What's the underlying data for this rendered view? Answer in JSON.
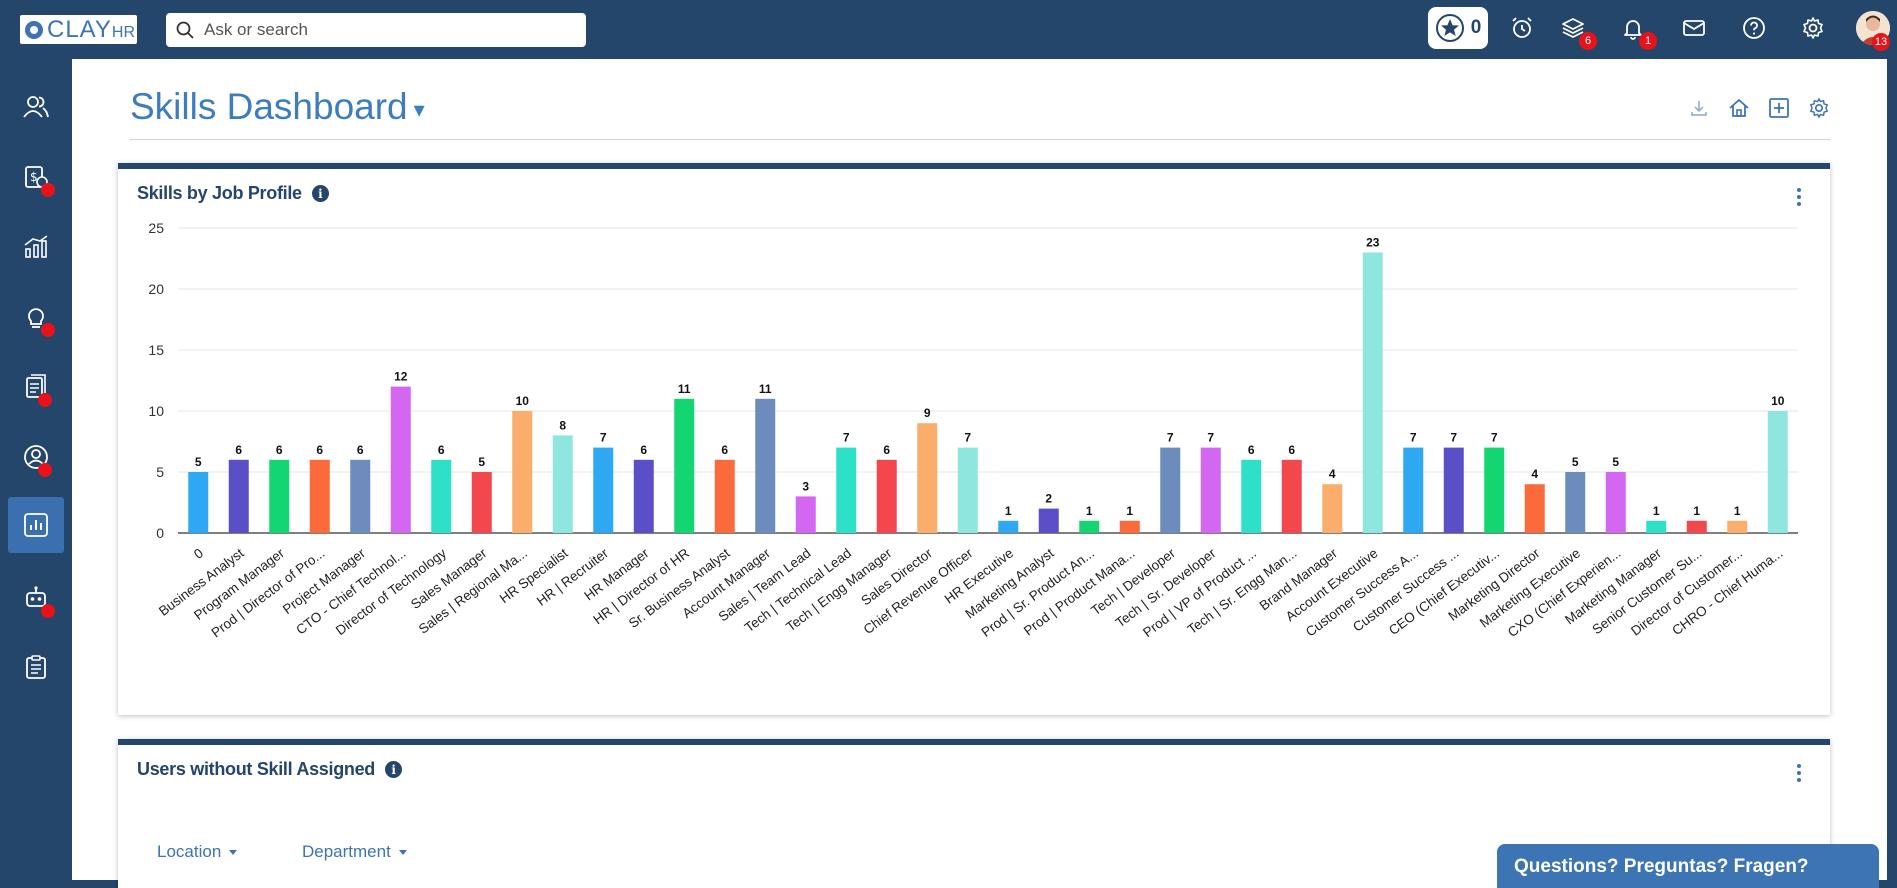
{
  "app": {
    "logo_text": "CLAY",
    "logo_suffix": "HR"
  },
  "search": {
    "placeholder": "Ask or search"
  },
  "topbar": {
    "star_count": "0",
    "layers_badge": "6",
    "notifications_badge": "1",
    "avatar_badge": "13"
  },
  "sidebar": {
    "items": [
      {
        "name": "people-icon",
        "dot": false
      },
      {
        "name": "payroll-icon",
        "dot": true
      },
      {
        "name": "analytics-icon",
        "dot": false
      },
      {
        "name": "goals-icon",
        "dot": true
      },
      {
        "name": "documents-icon",
        "dot": true
      },
      {
        "name": "profile-icon",
        "dot": true
      },
      {
        "name": "reports-icon",
        "dot": false,
        "active": true
      },
      {
        "name": "helpdesk-icon",
        "dot": true
      },
      {
        "name": "checklist-icon",
        "dot": false
      }
    ]
  },
  "page": {
    "title": "Skills Dashboard",
    "caret": "▾"
  },
  "skills_card": {
    "title": "Skills by Job Profile",
    "info": "i"
  },
  "users_card": {
    "title": "Users without Skill Assigned",
    "info": "i",
    "filters": [
      "Location",
      "Department"
    ]
  },
  "help": {
    "text": "Questions? Preguntas? Fragen?"
  },
  "chart_data": {
    "type": "bar",
    "title": "Skills by Job Profile",
    "ylim": [
      0,
      25
    ],
    "yticks": [
      0,
      5,
      10,
      15,
      20,
      25
    ],
    "grid": true,
    "categories": [
      "0",
      "Business Analyst",
      "Program Manager",
      "Prod | Director of Pro...",
      "Project Manager",
      "CTO - Chief Technol...",
      "Director of Technology",
      "Sales Manager",
      "Sales | Regional Ma...",
      "HR Specialist",
      "HR | Recruiter",
      "HR Manager",
      "HR | Director of HR",
      "Sr. Business Analyst",
      "Account Manager",
      "Sales | Team Lead",
      "Tech | Technical Lead",
      "Tech | Engg Manager",
      "Sales Director",
      "Chief Revenue Officer",
      "HR Executive",
      "Marketing Analyst",
      "Prod | Sr. Product An...",
      "Prod | Product Mana...",
      "Tech | Developer",
      "Tech | Sr. Developer",
      "Prod | VP of Product ...",
      "Tech | Sr. Engg Man...",
      "Brand Manager",
      "Account Executive",
      "Customer Success A...",
      "Customer Success ...",
      "CEO (Chief Executiv...",
      "Marketing Director",
      "Marketing Executive",
      "CXO (Chief Experien...",
      "Marketing Manager",
      "Senior Customer Su...",
      "Director of Customer...",
      "CHRO - Chief Huma..."
    ],
    "values": [
      5,
      6,
      6,
      6,
      6,
      12,
      6,
      5,
      10,
      8,
      7,
      6,
      11,
      6,
      11,
      3,
      7,
      6,
      9,
      7,
      1,
      2,
      1,
      1,
      7,
      7,
      6,
      6,
      4,
      23,
      7,
      7,
      7,
      4,
      5,
      5,
      1,
      1,
      1,
      10
    ],
    "colors": [
      "#2ea8f2",
      "#5b4fc8",
      "#13d672",
      "#fb6a3a",
      "#6b8cbd",
      "#d467f2",
      "#2fe0c9",
      "#f2474c",
      "#fbae6b",
      "#8fe6df"
    ]
  }
}
